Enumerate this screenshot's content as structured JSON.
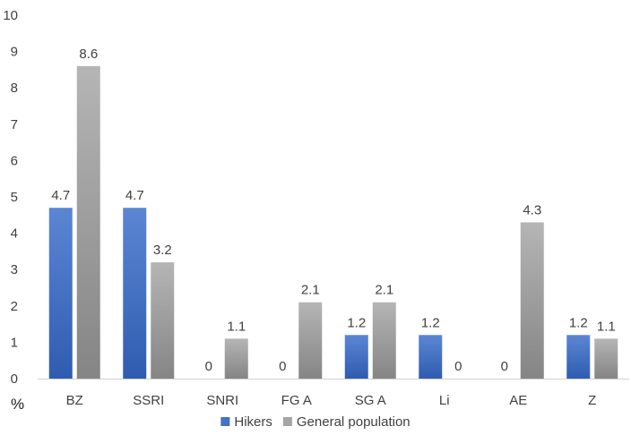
{
  "chart_data": {
    "type": "bar",
    "title": "",
    "xlabel": "",
    "ylabel": "%",
    "ylim": [
      0,
      10
    ],
    "yticks": [
      0,
      1,
      2,
      3,
      4,
      5,
      6,
      7,
      8,
      9,
      10
    ],
    "grid": false,
    "legend_position": "bottom",
    "categories": [
      "BZ",
      "SSRI",
      "SNRI",
      "FG A",
      "SG A",
      "Li",
      "AE",
      "Z"
    ],
    "series": [
      {
        "name": "Hikers",
        "color": "#4472c4",
        "values": [
          4.7,
          4.7,
          0,
          0,
          1.2,
          1.2,
          0,
          1.2
        ]
      },
      {
        "name": "General population",
        "color": "#a5a5a5",
        "values": [
          8.6,
          3.2,
          1.1,
          2.1,
          2.1,
          0,
          4.3,
          1.1
        ]
      }
    ]
  }
}
